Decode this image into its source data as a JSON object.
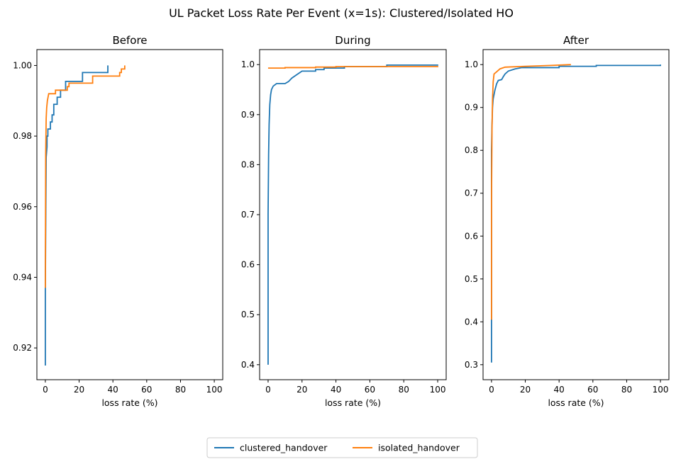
{
  "chart_data": {
    "type": "line",
    "title": "UL Packet Loss Rate Per Event (x=1s): Clustered/Isolated HO",
    "legend": {
      "placement": "bottom-center",
      "entries": [
        {
          "name": "clustered_handover",
          "color": "#1f77b4"
        },
        {
          "name": "isolated_handover",
          "color": "#ff7f0e"
        }
      ]
    },
    "subplots": [
      {
        "title": "Before",
        "xlabel": "loss rate (%)",
        "ylabel": "",
        "xlim": [
          -5,
          105
        ],
        "ylim": [
          0.911,
          1.0045
        ],
        "xticks": [
          0,
          20,
          40,
          60,
          80,
          100
        ],
        "yticks": [
          0.92,
          0.94,
          0.96,
          0.98,
          1.0
        ],
        "ytick_labels": [
          "0.92",
          "0.94",
          "0.96",
          "0.98",
          "1.00"
        ],
        "series": [
          {
            "name": "clustered_handover",
            "color": "#1f77b4",
            "points": [
              [
                0,
                0.915
              ],
              [
                0,
                0.937
              ],
              [
                0.3,
                0.96
              ],
              [
                0.5,
                0.974
              ],
              [
                1,
                0.977
              ],
              [
                1,
                0.98
              ],
              [
                1.5,
                0.98
              ],
              [
                1.5,
                0.982
              ],
              [
                3,
                0.982
              ],
              [
                3,
                0.984
              ],
              [
                4,
                0.984
              ],
              [
                4,
                0.986
              ],
              [
                5,
                0.986
              ],
              [
                5,
                0.989
              ],
              [
                7,
                0.989
              ],
              [
                7,
                0.991
              ],
              [
                9,
                0.991
              ],
              [
                9,
                0.993
              ],
              [
                12,
                0.993
              ],
              [
                12,
                0.9955
              ],
              [
                22,
                0.9955
              ],
              [
                22,
                0.998
              ],
              [
                37,
                0.998
              ],
              [
                37,
                1.0
              ]
            ]
          },
          {
            "name": "isolated_handover",
            "color": "#ff7f0e",
            "points": [
              [
                0,
                0.937
              ],
              [
                0.2,
                0.975
              ],
              [
                0.5,
                0.985
              ],
              [
                0.8,
                0.988
              ],
              [
                1.2,
                0.99
              ],
              [
                2,
                0.992
              ],
              [
                6,
                0.992
              ],
              [
                6,
                0.993
              ],
              [
                13,
                0.993
              ],
              [
                13,
                0.994
              ],
              [
                14,
                0.994
              ],
              [
                14,
                0.995
              ],
              [
                28,
                0.995
              ],
              [
                28,
                0.997
              ],
              [
                44,
                0.997
              ],
              [
                44,
                0.998
              ],
              [
                45,
                0.998
              ],
              [
                45,
                0.999
              ],
              [
                47,
                0.999
              ],
              [
                47,
                1.0
              ]
            ]
          }
        ]
      },
      {
        "title": "During",
        "xlabel": "loss rate (%)",
        "ylabel": "",
        "xlim": [
          -5,
          105
        ],
        "ylim": [
          0.37,
          1.03
        ],
        "xticks": [
          0,
          20,
          40,
          60,
          80,
          100
        ],
        "yticks": [
          0.4,
          0.5,
          0.6,
          0.7,
          0.8,
          0.9,
          1.0
        ],
        "ytick_labels": [
          "0.4",
          "0.5",
          "0.6",
          "0.7",
          "0.8",
          "0.9",
          "1.0"
        ],
        "series": [
          {
            "name": "clustered_handover",
            "color": "#1f77b4",
            "points": [
              [
                0,
                0.4
              ],
              [
                0,
                0.7
              ],
              [
                0.3,
                0.82
              ],
              [
                0.6,
                0.88
              ],
              [
                1,
                0.92
              ],
              [
                1.5,
                0.94
              ],
              [
                2,
                0.95
              ],
              [
                3,
                0.957
              ],
              [
                5,
                0.962
              ],
              [
                10,
                0.962
              ],
              [
                12,
                0.966
              ],
              [
                14,
                0.973
              ],
              [
                17,
                0.98
              ],
              [
                20,
                0.987
              ],
              [
                28,
                0.987
              ],
              [
                28,
                0.99
              ],
              [
                33,
                0.99
              ],
              [
                33,
                0.993
              ],
              [
                45,
                0.993
              ],
              [
                45,
                0.996
              ],
              [
                70,
                0.996
              ],
              [
                70,
                0.999
              ],
              [
                100,
                0.999
              ],
              [
                100,
                1.0
              ]
            ]
          },
          {
            "name": "isolated_handover",
            "color": "#ff7f0e",
            "points": [
              [
                0,
                0.993
              ],
              [
                10,
                0.993
              ],
              [
                10,
                0.994
              ],
              [
                28,
                0.994
              ],
              [
                28,
                0.995
              ],
              [
                40,
                0.995
              ],
              [
                40,
                0.996
              ],
              [
                100,
                0.996
              ],
              [
                100,
                0.997
              ]
            ]
          }
        ]
      },
      {
        "title": "After",
        "xlabel": "loss rate (%)",
        "ylabel": "",
        "xlim": [
          -5,
          105
        ],
        "ylim": [
          0.265,
          1.035
        ],
        "xticks": [
          0,
          20,
          40,
          60,
          80,
          100
        ],
        "yticks": [
          0.3,
          0.4,
          0.5,
          0.6,
          0.7,
          0.8,
          0.9,
          1.0
        ],
        "ytick_labels": [
          "0.3",
          "0.4",
          "0.5",
          "0.6",
          "0.7",
          "0.8",
          "0.9",
          "1.0"
        ],
        "series": [
          {
            "name": "clustered_handover",
            "color": "#1f77b4",
            "points": [
              [
                0,
                0.305
              ],
              [
                0,
                0.8
              ],
              [
                0.3,
                0.86
              ],
              [
                0.6,
                0.9
              ],
              [
                1,
                0.92
              ],
              [
                2,
                0.94
              ],
              [
                3,
                0.955
              ],
              [
                4,
                0.963
              ],
              [
                6,
                0.965
              ],
              [
                7,
                0.972
              ],
              [
                8,
                0.978
              ],
              [
                10,
                0.985
              ],
              [
                14,
                0.99
              ],
              [
                18,
                0.993
              ],
              [
                40,
                0.993
              ],
              [
                40,
                0.996
              ],
              [
                62,
                0.996
              ],
              [
                62,
                0.998
              ],
              [
                100,
                0.998
              ],
              [
                100,
                1.0
              ]
            ]
          },
          {
            "name": "isolated_handover",
            "color": "#ff7f0e",
            "points": [
              [
                0,
                0.405
              ],
              [
                0,
                0.68
              ],
              [
                0.3,
                0.85
              ],
              [
                0.6,
                0.92
              ],
              [
                1,
                0.96
              ],
              [
                1.5,
                0.978
              ],
              [
                3,
                0.983
              ],
              [
                5,
                0.99
              ],
              [
                8,
                0.994
              ],
              [
                20,
                0.996
              ],
              [
                35,
                0.998
              ],
              [
                47,
                1.0
              ]
            ]
          }
        ]
      }
    ]
  }
}
